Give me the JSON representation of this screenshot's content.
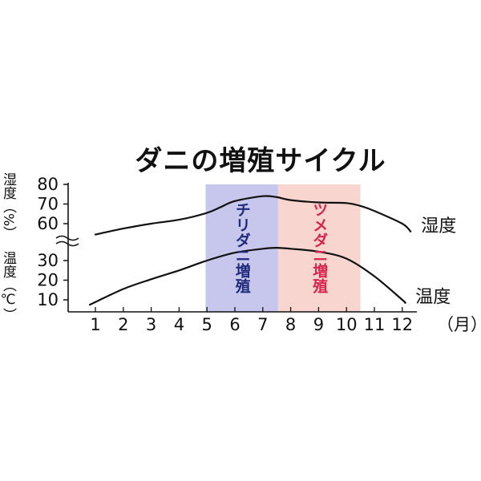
{
  "chart_data": {
    "type": "line",
    "title": "ダニの増殖サイクル",
    "x_unit_label": "（月）",
    "categories": [
      "1",
      "2",
      "3",
      "4",
      "5",
      "6",
      "7",
      "8",
      "9",
      "10",
      "11",
      "12"
    ],
    "humidity_axis": {
      "label": "湿度（%）",
      "ticks": [
        60,
        70,
        80
      ],
      "ylim": [
        55,
        80
      ]
    },
    "temperature_axis": {
      "label": "温度（℃）",
      "ticks": [
        10,
        20,
        30
      ],
      "ylim": [
        5,
        34
      ]
    },
    "series": [
      {
        "name": "湿度",
        "axis": "humidity",
        "x": [
          1.0,
          2.0,
          3.0,
          4.0,
          5.0,
          5.5,
          6.0,
          7.0,
          7.5,
          8.0,
          9.0,
          10.0,
          10.5,
          11.0,
          12.0,
          12.3
        ],
        "values": [
          54.5,
          57.5,
          60.0,
          62.0,
          65.5,
          68.5,
          71.5,
          74.0,
          73.5,
          72.0,
          70.8,
          70.5,
          69.0,
          66.5,
          60.0,
          56.0
        ]
      },
      {
        "name": "温度",
        "axis": "temperature",
        "x": [
          0.8,
          2.0,
          3.0,
          4.0,
          5.0,
          6.0,
          7.0,
          7.5,
          8.0,
          9.0,
          10.0,
          11.0,
          12.0,
          12.1
        ],
        "values": [
          7.5,
          15.5,
          20.5,
          25.0,
          30.0,
          34.0,
          36.0,
          36.5,
          36.0,
          34.5,
          31.0,
          22.0,
          10.0,
          8.5
        ]
      }
    ],
    "bands": [
      {
        "label": "チリダニ増殖",
        "x_start": 4.95,
        "x_end": 7.55,
        "color": "#c7c6ec"
      },
      {
        "label": "ツメダニ増殖",
        "x_start": 7.55,
        "x_end": 10.5,
        "color": "#f9d5cf"
      }
    ],
    "band_label_colors": [
      "#1f2a7a",
      "#d4244f"
    ],
    "line_color": "#111111",
    "grid": false,
    "legend": "line-end labels"
  }
}
